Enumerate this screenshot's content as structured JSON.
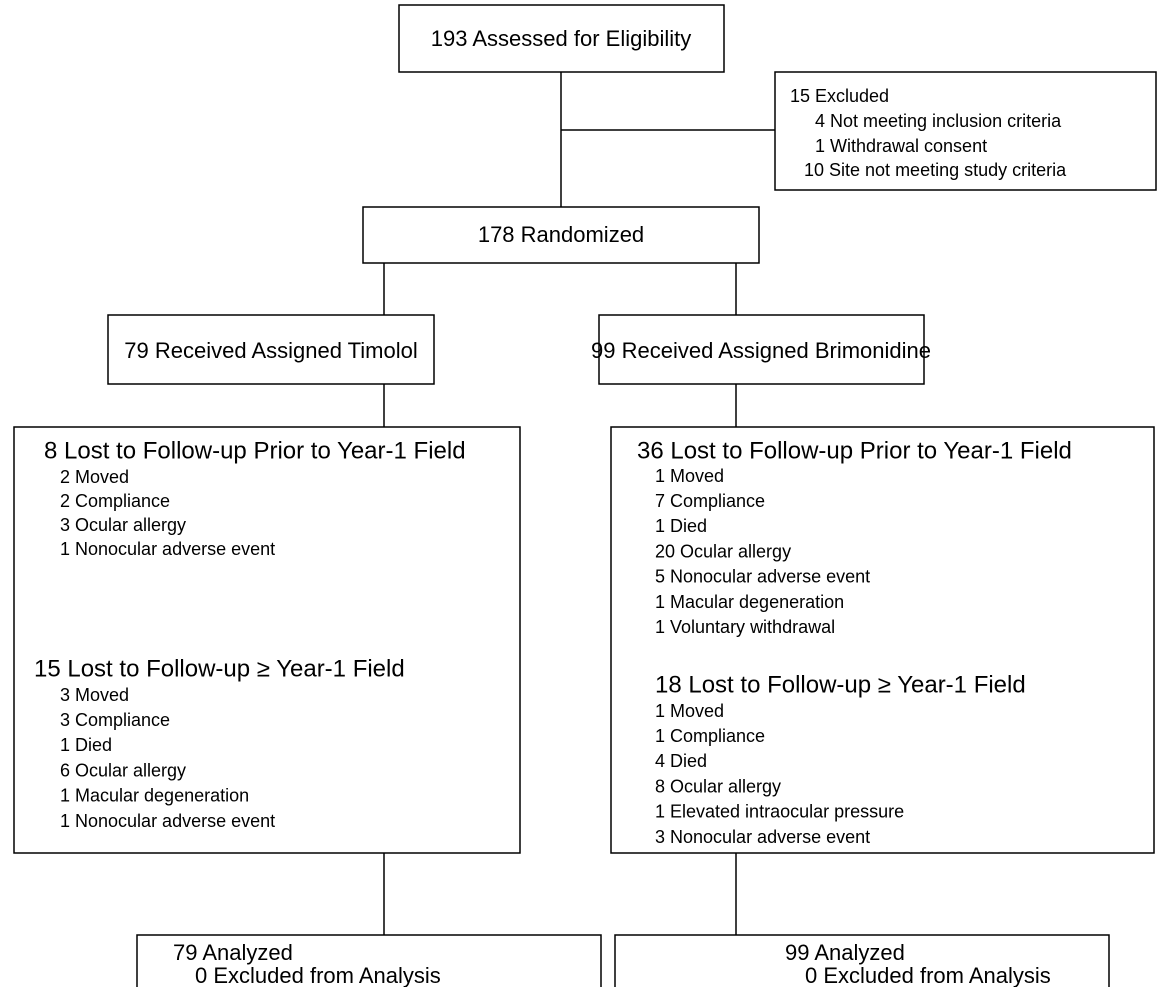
{
  "enrollment": {
    "assessed": "193 Assessed for Eligibility",
    "excluded": {
      "title": "15 Excluded",
      "items": [
        "4 Not meeting inclusion criteria",
        "1 Withdrawal consent",
        "10 Site not meeting study criteria"
      ]
    },
    "randomized": "178 Randomized"
  },
  "arms": [
    {
      "allocation": "79 Received Assigned Timolol",
      "lost_prior": {
        "title": "8 Lost to Follow-up Prior to Year-1 Field",
        "items": [
          "2 Moved",
          "2 Compliance",
          "3 Ocular allergy",
          "1 Nonocular adverse event"
        ]
      },
      "lost_after": {
        "title": "15 Lost to Follow-up ≥ Year-1 Field",
        "items": [
          "3 Moved",
          "3 Compliance",
          "1 Died",
          "6 Ocular allergy",
          "1 Macular degeneration",
          "1 Nonocular adverse event"
        ]
      },
      "analysis": {
        "analyzed": "79 Analyzed",
        "excluded": "0 Excluded from Analysis"
      }
    },
    {
      "allocation": "99 Received Assigned Brimonidine",
      "lost_prior": {
        "title": "36 Lost to Follow-up Prior to Year-1 Field",
        "items": [
          "1 Moved",
          "7 Compliance",
          "1 Died",
          "20 Ocular allergy",
          "5 Nonocular adverse event",
          "1 Macular degeneration",
          "1 Voluntary withdrawal"
        ]
      },
      "lost_after": {
        "title": "18 Lost to Follow-up ≥ Year-1 Field",
        "items": [
          "1 Moved",
          "1 Compliance",
          "4 Died",
          "8 Ocular allergy",
          "1 Elevated intraocular pressure",
          "3 Nonocular adverse event"
        ]
      },
      "analysis": {
        "analyzed": "99 Analyzed",
        "excluded": "0 Excluded from Analysis"
      }
    }
  ]
}
